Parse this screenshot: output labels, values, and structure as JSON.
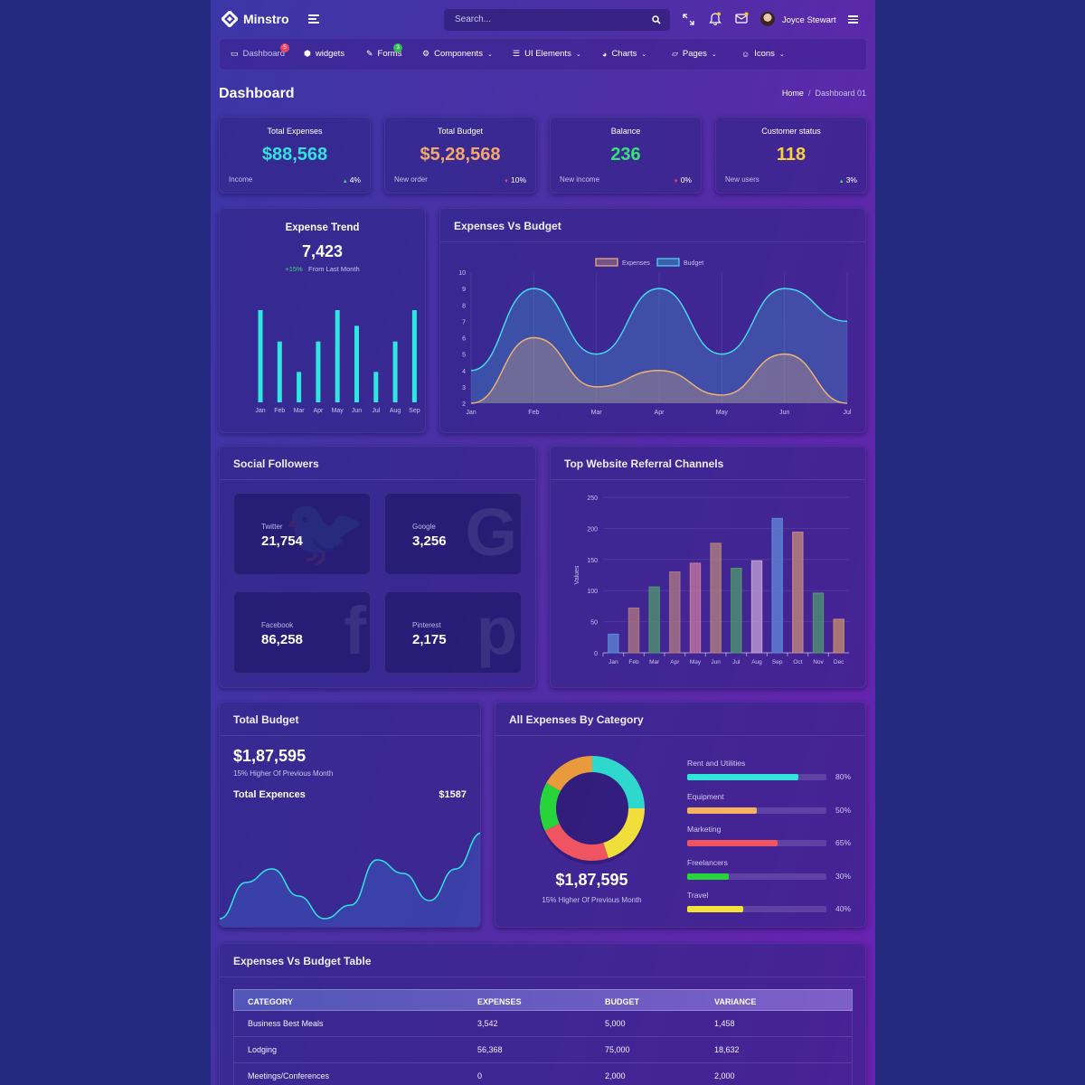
{
  "brand": {
    "name": "Minstro",
    "user": "Joyce Stewart"
  },
  "search": {
    "placeholder": "Search..."
  },
  "nav": [
    {
      "label": "Dashboard",
      "icon": "laptop-icon",
      "badge": "5",
      "badge_color": "#ee4466"
    },
    {
      "label": "widgets",
      "icon": "cube-icon"
    },
    {
      "label": "Forms",
      "icon": "edit-icon",
      "badge": "3",
      "badge_color": "#33bb55"
    },
    {
      "label": "Components",
      "icon": "cogs-icon",
      "dropdown": true
    },
    {
      "label": "UI Elements",
      "icon": "list-icon",
      "dropdown": true
    },
    {
      "label": "Charts",
      "icon": "pie-icon",
      "dropdown": true
    },
    {
      "label": "Pages",
      "icon": "folder-icon",
      "dropdown": true
    },
    {
      "label": "Icons",
      "icon": "smile-icon",
      "dropdown": true
    }
  ],
  "page": {
    "title": "Dashboard",
    "crumb_home": "Home",
    "crumb_sep": "/",
    "crumb_current": "Dashboard 01"
  },
  "stats": [
    {
      "label": "Total Expenses",
      "value": "$88,568",
      "color": "#35e0dd",
      "foot": "Income",
      "arrow": "▲",
      "arrow_color": "#3ddc6a",
      "pct": "4%"
    },
    {
      "label": "Total Budget",
      "value": "$5,28,568",
      "color": "#f4a86a",
      "foot": "New order",
      "arrow": "▼",
      "arrow_color": "#ee4466",
      "pct": "10%"
    },
    {
      "label": "Balance",
      "value": "236",
      "color": "#38e07a",
      "foot": "New income",
      "arrow": "▼",
      "arrow_color": "#ee4466",
      "pct": "0%"
    },
    {
      "label": "Customer status",
      "value": "118",
      "color": "#f6d23c",
      "foot": "New users",
      "arrow": "▲",
      "arrow_color": "#3ddc6a",
      "pct": "3%"
    }
  ],
  "trend": {
    "title": "Expense Trend",
    "value": "7,423",
    "change": "+15%",
    "change_text": "From Last Month",
    "chart_data": {
      "type": "bar",
      "categories": [
        "Jan",
        "Feb",
        "Mar",
        "Apr",
        "May",
        "Jun",
        "Jul",
        "Aug",
        "Sep"
      ],
      "values": [
        100,
        66,
        33,
        66,
        100,
        83,
        33,
        66,
        100
      ],
      "color": "#2fe6e0"
    }
  },
  "evb": {
    "title": "Expenses Vs Budget",
    "chart_data": {
      "type": "area",
      "categories": [
        "Jan",
        "Feb",
        "Mar",
        "Apr",
        "May",
        "Jun",
        "Jul"
      ],
      "ylim": [
        2,
        10
      ],
      "yticks": [
        2,
        3,
        4,
        5,
        6,
        7,
        8,
        9,
        10
      ],
      "series": [
        {
          "name": "Expenses",
          "color": "#f2b277",
          "values": [
            2,
            6,
            3,
            4,
            2.5,
            5,
            2
          ]
        },
        {
          "name": "Budget",
          "color": "#46dff0",
          "values": [
            4,
            9,
            5,
            9,
            5,
            9,
            7
          ]
        }
      ]
    }
  },
  "social": {
    "title": "Social Followers",
    "items": [
      {
        "name": "Twitter",
        "count": "21,754",
        "glyph": "🐦"
      },
      {
        "name": "Google",
        "count": "3,256",
        "glyph": "G"
      },
      {
        "name": "Facebook",
        "count": "86,258",
        "glyph": "f"
      },
      {
        "name": "Pinterest",
        "count": "2,175",
        "glyph": "p"
      }
    ]
  },
  "referral": {
    "title": "Top Website Referral Channels",
    "chart_data": {
      "type": "bar",
      "ylabel": "Values",
      "ylim": [
        0,
        250
      ],
      "yticks": [
        0,
        50,
        100,
        150,
        200,
        250
      ],
      "categories": [
        "Jan",
        "Feb",
        "Mar",
        "Apr",
        "May",
        "Jun",
        "Jul",
        "Aug",
        "Sep",
        "Oct",
        "Nov",
        "Dec"
      ],
      "values": [
        30,
        72,
        106,
        130,
        144,
        176,
        136,
        148,
        216,
        194,
        96,
        54
      ],
      "colors": [
        "#5f8ad8",
        "#b07a80",
        "#4f9a6e",
        "#b27b84",
        "#c87aa0",
        "#b78480",
        "#4f9a6e",
        "#c3a3d6",
        "#5f8ad8",
        "#c78b80",
        "#4f9a6e",
        "#c6906e"
      ]
    }
  },
  "total_budget": {
    "title": "Total Budget",
    "value": "$1,87,595",
    "sub": "15% Higher Of Previous Month",
    "row_label": "Total Expences",
    "row_value": "$1587",
    "chart_data": {
      "type": "area",
      "color": "#2fe6e0",
      "values": [
        0.05,
        0.45,
        0.6,
        0.3,
        0.05,
        0.2,
        0.7,
        0.55,
        0.25,
        0.6,
        1.0
      ]
    }
  },
  "expenses_cat": {
    "title": "All Expenses By Category",
    "value": "$1,87,595",
    "sub": "15% Higher Of Previous Month",
    "chart_data": {
      "type": "pie",
      "slices": [
        {
          "name": "Rent and Utilities",
          "value": 80,
          "color": "#2fd8cc"
        },
        {
          "name": "Equipment",
          "value": 50,
          "color": "#f2b36a"
        },
        {
          "name": "Marketing",
          "value": 65,
          "color": "#ee5560"
        },
        {
          "name": "Freelancers",
          "value": 30,
          "color": "#27d43a"
        },
        {
          "name": "Travel",
          "value": 40,
          "color": "#f0de3a"
        }
      ],
      "donut_order": [
        {
          "value": 25,
          "color": "#2fd8cc"
        },
        {
          "value": 20,
          "color": "#f0de3a"
        },
        {
          "value": 23,
          "color": "#ee5560"
        },
        {
          "value": 15,
          "color": "#27d43a"
        },
        {
          "value": 17,
          "color": "#e89a3c"
        }
      ]
    },
    "bars": [
      {
        "label": "Rent and Utilities",
        "pct": "80%",
        "fill": 0.8,
        "color": "#2fe6d8"
      },
      {
        "label": "Equipment",
        "pct": "50%",
        "fill": 0.5,
        "color": "#f5b060"
      },
      {
        "label": "Marketing",
        "pct": "65%",
        "fill": 0.65,
        "color": "#ee5560"
      },
      {
        "label": "Freelancers",
        "pct": "30%",
        "fill": 0.3,
        "color": "#27d43a"
      },
      {
        "label": "Travel",
        "pct": "40%",
        "fill": 0.4,
        "color": "#f2e23a"
      }
    ]
  },
  "table": {
    "title": "Expenses Vs Budget Table",
    "headers": [
      "CATEGORY",
      "EXPENSES",
      "BUDGET",
      "VARIANCE"
    ],
    "rows": [
      [
        "Business Best Meals",
        "3,542",
        "5,000",
        "1,458"
      ],
      [
        "Lodging",
        "56,368",
        "75,000",
        "18,632"
      ],
      [
        "Meetings/Conferences",
        "0",
        "2,000",
        "2,000"
      ]
    ]
  }
}
